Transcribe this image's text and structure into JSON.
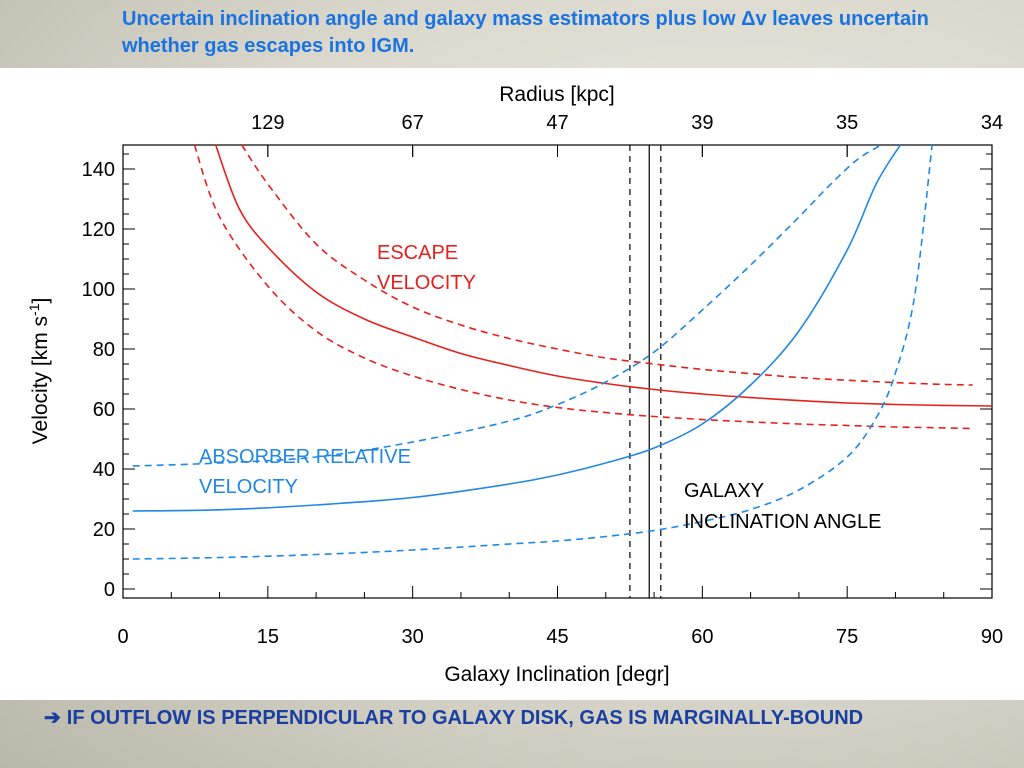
{
  "slide": {
    "title": "Uncertain inclination angle and galaxy mass estimators plus low Δv leaves uncertain whether gas escapes into IGM.",
    "footer_arrow": "➔",
    "footer": "IF OUTFLOW IS PERPENDICULAR TO GALAXY DISK, GAS IS MARGINALLY-BOUND"
  },
  "colors": {
    "escape": "#e8201c",
    "absorber": "#1f88e5",
    "axis": "#000000",
    "title": "#1a73e0",
    "footer": "#1a3fa0"
  },
  "chart_data": {
    "type": "line",
    "xlabel": "Galaxy Inclination [degr]",
    "ylabel": "Velocity [km s-1]",
    "ylabel_main": "Velocity [km s",
    "ylabel_exp": "-1",
    "ylabel_end": "]",
    "top_axis_label": "Radius [kpc]",
    "xlim": [
      0,
      90
    ],
    "ylim": [
      -3,
      148
    ],
    "x_ticks": [
      0,
      15,
      30,
      45,
      60,
      75,
      90
    ],
    "x_tick_labels": [
      "0",
      "15",
      "30",
      "45",
      "60",
      "75",
      "90"
    ],
    "y_ticks": [
      0,
      20,
      40,
      60,
      80,
      100,
      120,
      140
    ],
    "y_tick_labels": [
      "0",
      "20",
      "40",
      "60",
      "80",
      "100",
      "120",
      "140"
    ],
    "top_ticks": [
      {
        "x": 15,
        "label": "129"
      },
      {
        "x": 30,
        "label": "67"
      },
      {
        "x": 45,
        "label": "47"
      },
      {
        "x": 60,
        "label": "39"
      },
      {
        "x": 75,
        "label": "35"
      },
      {
        "x": 90,
        "label": "34"
      }
    ],
    "vertical_lines": [
      {
        "x": 54.5,
        "style": "solid"
      },
      {
        "x": 52.5,
        "style": "dashed"
      },
      {
        "x": 55.7,
        "style": "dashed"
      }
    ],
    "series": [
      {
        "group": "escape",
        "style": "solid",
        "x": [
          9.6,
          12,
          15,
          20,
          25,
          30,
          35,
          40,
          45,
          50,
          55,
          60,
          65,
          70,
          75,
          80,
          85,
          90
        ],
        "y": [
          148,
          127,
          114,
          99,
          90,
          84,
          78.5,
          74.5,
          71,
          68.5,
          66.5,
          65,
          63.8,
          62.8,
          62,
          61.5,
          61.2,
          61
        ]
      },
      {
        "group": "escape",
        "style": "dashed",
        "x": [
          12.3,
          15,
          20,
          25,
          30,
          35,
          40,
          45,
          50,
          55,
          60,
          65,
          70,
          75,
          80,
          85,
          88
        ],
        "y": [
          148,
          135,
          115,
          103,
          94,
          88,
          83.5,
          80,
          77,
          75,
          73.2,
          71.8,
          70.5,
          69.6,
          68.8,
          68.2,
          68
        ]
      },
      {
        "group": "escape",
        "style": "dashed",
        "x": [
          7.4,
          10,
          15,
          20,
          25,
          30,
          35,
          40,
          45,
          50,
          55,
          60,
          65,
          70,
          75,
          80,
          85,
          88
        ],
        "y": [
          148,
          124,
          101,
          86,
          77,
          71,
          66.5,
          63,
          60.5,
          58.8,
          57.5,
          56.5,
          55.7,
          55,
          54.5,
          54,
          53.7,
          53.5
        ]
      },
      {
        "group": "absorber",
        "style": "solid",
        "x": [
          1,
          10,
          20,
          30,
          40,
          45,
          50,
          55,
          60,
          65,
          70,
          75,
          78,
          80.5
        ],
        "y": [
          26,
          26.4,
          28,
          30.5,
          35,
          38,
          42,
          47,
          55,
          68,
          86,
          113,
          135,
          148
        ]
      },
      {
        "group": "absorber",
        "style": "dashed",
        "x": [
          1,
          10,
          20,
          30,
          40,
          45,
          50,
          55,
          60,
          65,
          70,
          73,
          76,
          78.5
        ],
        "y": [
          41,
          42,
          44,
          49,
          56,
          61.5,
          69,
          79,
          93,
          108,
          124,
          134,
          143,
          148
        ]
      },
      {
        "group": "absorber",
        "style": "dashed",
        "x": [
          1,
          10,
          20,
          30,
          40,
          45,
          50,
          55,
          60,
          65,
          70,
          75,
          78,
          80,
          82,
          83.8
        ],
        "y": [
          10,
          10.5,
          11.5,
          13,
          15,
          16,
          17.5,
          19.5,
          22.5,
          26.5,
          33,
          44,
          57,
          72,
          98,
          148
        ]
      }
    ],
    "annotations": {
      "escape": [
        "ESCAPE",
        "VELOCITY"
      ],
      "absorber": [
        "ABSORBER RELATIVE",
        "VELOCITY"
      ],
      "galaxy": [
        "GALAXY",
        "INCLINATION ANGLE"
      ]
    }
  }
}
